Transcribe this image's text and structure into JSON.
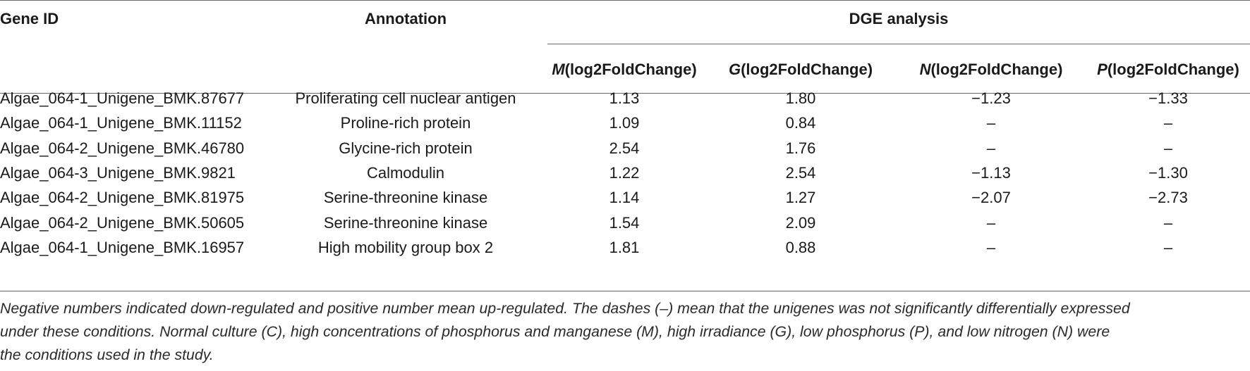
{
  "table": {
    "headers": {
      "gene_id": "Gene ID",
      "annotation": "Annotation",
      "dge_group": "DGE analysis",
      "sub": [
        {
          "letter": "M",
          "suffix": "(log2FoldChange)"
        },
        {
          "letter": "G",
          "suffix": "(log2FoldChange)"
        },
        {
          "letter": "N",
          "suffix": "(log2FoldChange)"
        },
        {
          "letter": "P",
          "suffix": "(log2FoldChange)"
        }
      ]
    },
    "rows": [
      {
        "gene": "Algae_064-1_Unigene_BMK.87677",
        "annotation": "Proliferating cell nuclear antigen",
        "m": "1.13",
        "g": "1.80",
        "n": "−1.23",
        "p": "−1.33"
      },
      {
        "gene": "Algae_064-1_Unigene_BMK.11152",
        "annotation": "Proline-rich protein",
        "m": "1.09",
        "g": "0.84",
        "n": "–",
        "p": "–"
      },
      {
        "gene": "Algae_064-2_Unigene_BMK.46780",
        "annotation": "Glycine-rich protein",
        "m": "2.54",
        "g": "1.76",
        "n": "–",
        "p": "–"
      },
      {
        "gene": "Algae_064-3_Unigene_BMK.9821",
        "annotation": "Calmodulin",
        "m": "1.22",
        "g": "2.54",
        "n": "−1.13",
        "p": "−1.30"
      },
      {
        "gene": "Algae_064-2_Unigene_BMK.81975",
        "annotation": "Serine-threonine kinase",
        "m": "1.14",
        "g": "1.27",
        "n": "−2.07",
        "p": "−2.73"
      },
      {
        "gene": "Algae_064-2_Unigene_BMK.50605",
        "annotation": "Serine-threonine kinase",
        "m": "1.54",
        "g": "2.09",
        "n": "–",
        "p": "–"
      },
      {
        "gene": "Algae_064-1_Unigene_BMK.16957",
        "annotation": "High mobility group box 2",
        "m": "1.81",
        "g": "0.88",
        "n": "–",
        "p": "–"
      }
    ]
  },
  "footnote": {
    "lines": [
      "Negative numbers indicated down-regulated and positive number mean up-regulated. The dashes (–) mean that the unigenes was not significantly differentially expressed",
      "under these conditions. Normal culture (C), high concentrations of phosphorus and manganese (M), high irradiance (G), low phosphorus (P), and low nitrogen (N) were",
      "the conditions used in the study."
    ]
  }
}
